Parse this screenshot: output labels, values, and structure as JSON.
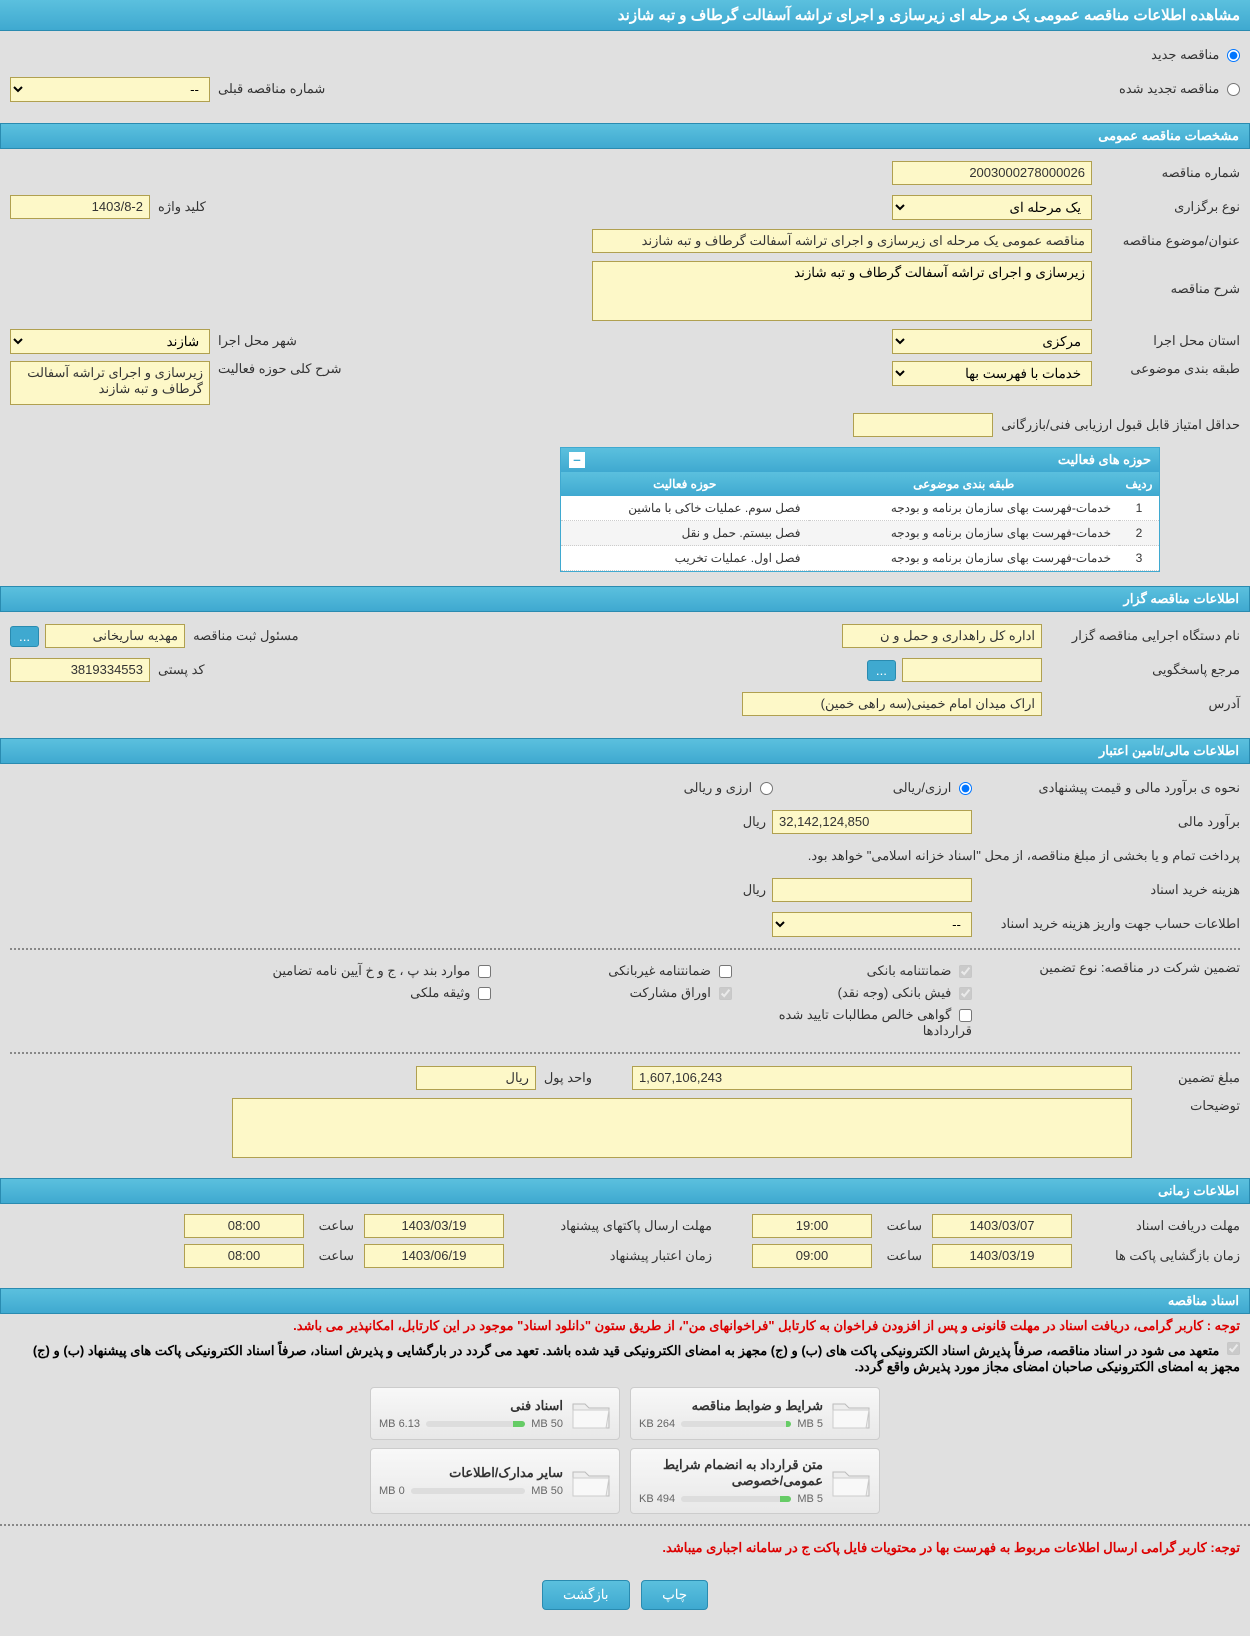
{
  "page_title": "مشاهده اطلاعات مناقصه عمومی یک مرحله ای زیرسازی و اجرای تراشه آسفالت گرطاف و تبه شازند",
  "tender_type": {
    "new_label": "مناقصه جدید",
    "renewed_label": "مناقصه تجدید شده",
    "prev_number_label": "شماره مناقصه قبلی",
    "prev_number_value": "--"
  },
  "general": {
    "header": "مشخصات مناقصه عمومی",
    "number_label": "شماره مناقصه",
    "number_value": "2003000278000026",
    "holding_type_label": "نوع برگزاری",
    "holding_type_value": "یک مرحله ای",
    "keyword_label": "کلید واژه",
    "keyword_value": "1403/8-2",
    "title_label": "عنوان/موضوع مناقصه",
    "title_value": "مناقصه عمومی یک مرحله ای زیرسازی و اجرای تراشه آسفالت گرطاف و تبه شازند",
    "desc_label": "شرح مناقصه",
    "desc_value": "زیرسازی و اجرای تراشه آسفالت گرطاف و تبه شازند",
    "province_label": "استان محل اجرا",
    "province_value": "مرکزی",
    "city_label": "شهر محل اجرا",
    "city_value": "شازند",
    "category_label": "طبقه بندی موضوعی",
    "category_value": "خدمات با فهرست بها",
    "scope_desc_label": "شرح کلی حوزه فعالیت",
    "scope_desc_value": "زیرسازی و اجرای تراشه آسفالت گرطاف و تبه شازند",
    "min_score_label": "حداقل امتیاز قابل قبول ارزیابی فنی/بازرگانی",
    "min_score_value": ""
  },
  "activity_table": {
    "title": "حوزه های فعالیت",
    "col_row": "ردیف",
    "col_category": "طبقه بندی موضوعی",
    "col_scope": "حوزه فعالیت",
    "rows": [
      {
        "n": "1",
        "cat": "خدمات-فهرست بهای سازمان برنامه و بودجه",
        "scope": "فصل سوم. عملیات خاکی با ماشین"
      },
      {
        "n": "2",
        "cat": "خدمات-فهرست بهای سازمان برنامه و بودجه",
        "scope": "فصل بیستم. حمل و نقل"
      },
      {
        "n": "3",
        "cat": "خدمات-فهرست بهای سازمان برنامه و بودجه",
        "scope": "فصل اول. عملیات تخریب"
      }
    ]
  },
  "organizer": {
    "header": "اطلاعات مناقصه گزار",
    "exec_label": "نام دستگاه اجرایی مناقصه گزار",
    "exec_value": "اداره کل راهداری و حمل و ن",
    "reg_officer_label": "مسئول ثبت مناقصه",
    "reg_officer_value": "مهدیه ساریخانی",
    "more_btn": "...",
    "contact_label": "مرجع پاسخگویی",
    "contact_value": "",
    "postal_label": "کد پستی",
    "postal_value": "3819334553",
    "address_label": "آدرس",
    "address_value": "اراک میدان امام خمینی(سه راهی خمین)"
  },
  "financial": {
    "header": "اطلاعات مالی/تامین اعتبار",
    "method_label": "نحوه ی برآورد مالی و قیمت پیشنهادی",
    "option_rial": "ارزی/ریالی",
    "option_currency": "ارزی و ریالی",
    "estimate_label": "برآورد مالی",
    "estimate_value": "32,142,124,850",
    "unit_rial": "ریال",
    "treasury_note": "پرداخت تمام و یا بخشی از مبلغ مناقصه، از محل \"اسناد خزانه اسلامی\" خواهد بود.",
    "doc_cost_label": "هزینه خرید اسناد",
    "doc_cost_value": "",
    "account_label": "اطلاعات حساب جهت واریز هزینه خرید اسناد",
    "account_value": "--",
    "guarantee_title": "تضمین شرکت در مناقصه:     نوع تضمین",
    "chk_bank_guarantee": "ضمانتنامه بانکی",
    "chk_nonbank_guarantee": "ضمانتنامه غیربانکی",
    "chk_appendix": "موارد بند پ ، ج و خ آیین نامه تضامین",
    "chk_bank_receipt": "فیش بانکی (وجه نقد)",
    "chk_bonds": "اوراق مشارکت",
    "chk_property": "وثیقه ملکی",
    "chk_contract_claims": "گواهی خالص مطالبات تایید شده قراردادها",
    "guarantee_amount_label": "مبلغ تضمین",
    "guarantee_amount_value": "1,607,106,243",
    "money_unit_label": "واحد پول",
    "money_unit_value": "ریال",
    "notes_label": "توضیحات",
    "notes_value": ""
  },
  "timing": {
    "header": "اطلاعات زمانی",
    "receive_deadline_label": "مهلت دریافت اسناد",
    "receive_deadline_date": "1403/03/07",
    "receive_deadline_time": "19:00",
    "submit_deadline_label": "مهلت ارسال پاکتهای پیشنهاد",
    "submit_deadline_date": "1403/03/19",
    "submit_deadline_time": "08:00",
    "opening_label": "زمان بازگشایی پاکت ها",
    "opening_date": "1403/03/19",
    "opening_time": "09:00",
    "validity_label": "زمان اعتبار پیشنهاد",
    "validity_date": "1403/06/19",
    "validity_time": "08:00",
    "time_label": "ساعت"
  },
  "docs": {
    "header": "اسناد مناقصه",
    "notice1": "توجه : کاربر گرامی، دریافت اسناد در مهلت قانونی و پس از افزودن فراخوان به کارتابل \"فراخوانهای من\"، از طریق ستون \"دانلود اسناد\" موجود در این کارتابل، امکانپذیر می باشد.",
    "notice2": "متعهد می شود در اسناد مناقصه، صرفاً پذیرش اسناد الکترونیکی پاکت های (ب) و (ج) مجهز به امضای الکترونیکی قید شده باشد. تعهد می گردد در بارگشایی و پذیرش اسناد، صرفاً اسناد الکترونیکی پاکت های پیشنهاد (ب) و (ج) مجهز به امضای الکترونیکی صاحبان امضای مجاز مورد پذیرش واقع گردد.",
    "cards": [
      {
        "title": "شرایط و ضوابط مناقصه",
        "used": "264 KB",
        "total": "5 MB",
        "pct": 5
      },
      {
        "title": "اسناد فنی",
        "used": "6.13 MB",
        "total": "50 MB",
        "pct": 12
      },
      {
        "title": "متن قرارداد به انضمام شرایط عمومی/خصوصی",
        "used": "494 KB",
        "total": "5 MB",
        "pct": 10
      },
      {
        "title": "سایر مدارک/اطلاعات",
        "used": "0 MB",
        "total": "50 MB",
        "pct": 0
      }
    ],
    "footer_notice": "توجه: کاربر گرامی ارسال اطلاعات مربوط به فهرست بها در محتویات فایل پاکت ج در سامانه اجباری میباشد."
  },
  "buttons": {
    "print": "چاپ",
    "back": "بازگشت"
  },
  "colors": {
    "header_bg": "#3fa9d0",
    "field_bg": "#fdf8c8",
    "field_border": "#b0a050",
    "notice_red": "#d00"
  }
}
